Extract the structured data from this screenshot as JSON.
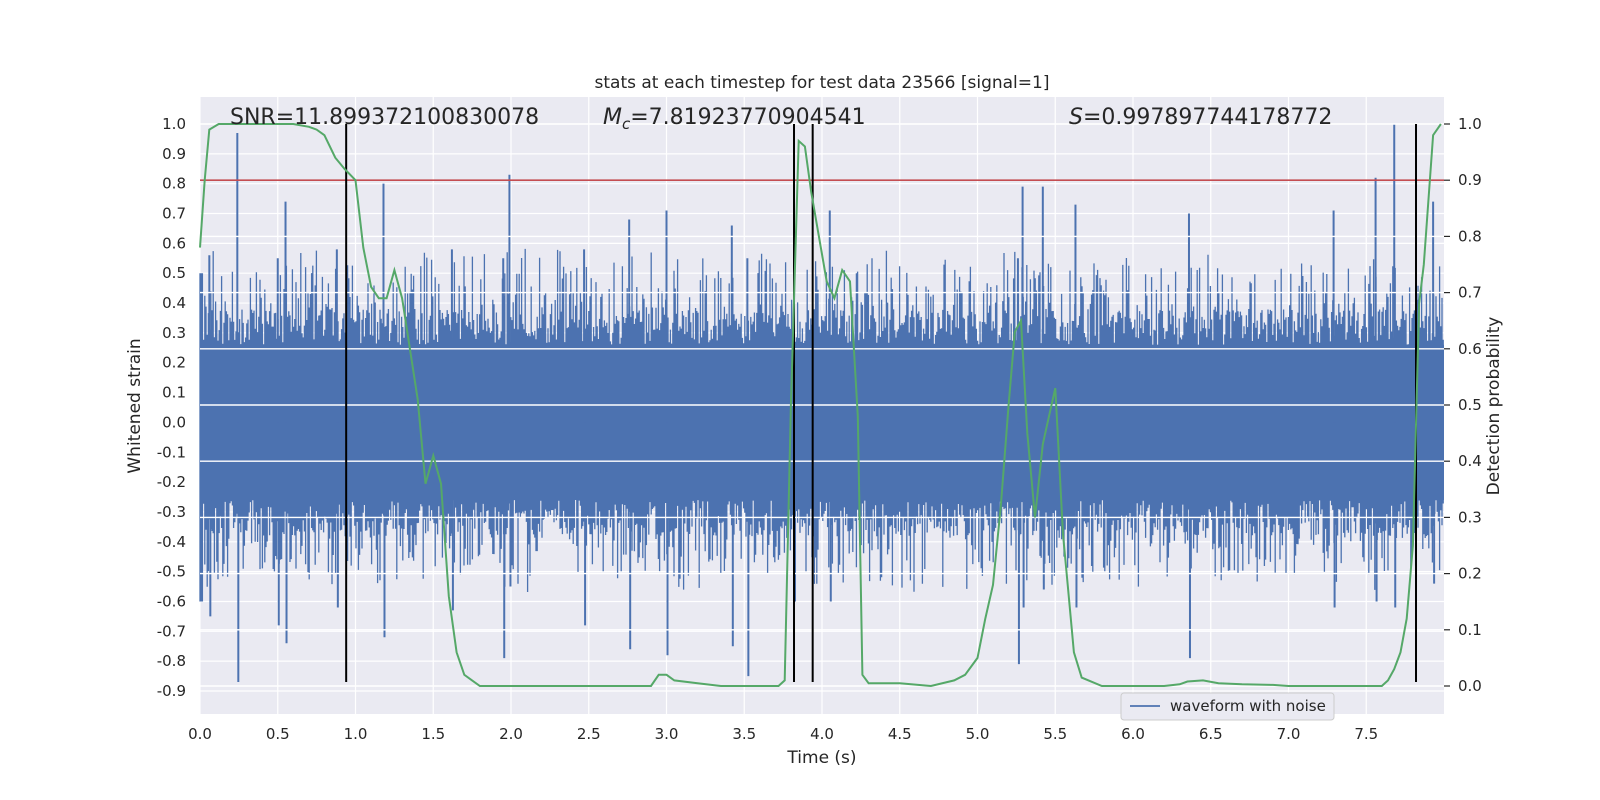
{
  "chart_data": {
    "type": "line",
    "title": "stats at each timestep for test data 23566 [signal=1]",
    "xlabel": "Time (s)",
    "ylabel": "Whitened strain",
    "y2label": "Detection probability",
    "xlim": [
      0.0,
      8.0
    ],
    "ylim": [
      -0.97,
      1.0
    ],
    "y2lim": [
      -0.05,
      1.0
    ],
    "x_ticks": [
      "0.0",
      "0.5",
      "1.0",
      "1.5",
      "2.0",
      "2.5",
      "3.0",
      "3.5",
      "4.0",
      "4.5",
      "5.0",
      "5.5",
      "6.0",
      "6.5",
      "7.0",
      "7.5"
    ],
    "y_ticks": [
      "1.0",
      "0.9",
      "0.8",
      "0.7",
      "0.6",
      "0.5",
      "0.4",
      "0.3",
      "0.2",
      "0.1",
      "0.0",
      "-0.1",
      "-0.2",
      "-0.3",
      "-0.4",
      "-0.5",
      "-0.6",
      "-0.7",
      "-0.8",
      "-0.9"
    ],
    "y2_ticks": [
      "1.0",
      "0.9",
      "0.8",
      "0.7",
      "0.6",
      "0.5",
      "0.4",
      "0.3",
      "0.2",
      "0.1",
      "0.0"
    ],
    "grid": true,
    "legend_position": "lower-right",
    "annotations": {
      "snr": "SNR=11.899372100830078",
      "mc_symbol": "M",
      "mc_sub": "c",
      "mc_value": "=7.81923770904541",
      "s_symbol": "S",
      "s_value": "=0.997897744178772"
    },
    "series": [
      {
        "name": "waveform with noise",
        "color": "#4c72b0",
        "axis": "left",
        "spikes": [
          {
            "x": 0.24,
            "top": 0.97,
            "bottom": -0.87
          },
          {
            "x": 0.06,
            "top": 0.56,
            "bottom": -0.65
          },
          {
            "x": 0.5,
            "top": 0.55,
            "bottom": -0.68
          },
          {
            "x": 0.55,
            "top": 0.74,
            "bottom": -0.74
          },
          {
            "x": 0.88,
            "top": 0.58,
            "bottom": -0.62
          },
          {
            "x": 1.18,
            "top": 0.8,
            "bottom": -0.72
          },
          {
            "x": 1.62,
            "top": 0.58,
            "bottom": -0.63
          },
          {
            "x": 1.95,
            "top": 0.55,
            "bottom": -0.79
          },
          {
            "x": 1.99,
            "top": 0.83,
            "bottom": -0.55
          },
          {
            "x": 2.47,
            "top": 0.58,
            "bottom": -0.68
          },
          {
            "x": 2.76,
            "top": 0.68,
            "bottom": -0.76
          },
          {
            "x": 3.0,
            "top": 0.71,
            "bottom": -0.78
          },
          {
            "x": 3.42,
            "top": 0.66,
            "bottom": -0.75
          },
          {
            "x": 3.52,
            "top": 0.55,
            "bottom": -0.85
          },
          {
            "x": 3.82,
            "top": 0.75,
            "bottom": -0.6
          },
          {
            "x": 4.05,
            "top": 0.71,
            "bottom": -0.6
          },
          {
            "x": 5.29,
            "top": 0.79,
            "bottom": -0.62
          },
          {
            "x": 5.26,
            "top": 0.55,
            "bottom": -0.81
          },
          {
            "x": 5.42,
            "top": 0.79,
            "bottom": -0.56
          },
          {
            "x": 5.63,
            "top": 0.73,
            "bottom": -0.62
          },
          {
            "x": 6.36,
            "top": 0.7,
            "bottom": -0.79
          },
          {
            "x": 7.29,
            "top": 0.71,
            "bottom": -0.62
          },
          {
            "x": 7.56,
            "top": 0.82,
            "bottom": -0.6
          },
          {
            "x": 7.68,
            "top": 1.0,
            "bottom": -0.62
          },
          {
            "x": 7.93,
            "top": 0.74,
            "bottom": -0.54
          }
        ]
      },
      {
        "name": "",
        "color": "#55a868",
        "axis": "right",
        "x": [
          0.0,
          0.03,
          0.06,
          0.12,
          0.2,
          0.3,
          0.4,
          0.5,
          0.6,
          0.7,
          0.75,
          0.8,
          0.87,
          0.93,
          1.0,
          1.05,
          1.1,
          1.15,
          1.2,
          1.25,
          1.3,
          1.35,
          1.4,
          1.45,
          1.5,
          1.55,
          1.6,
          1.65,
          1.7,
          1.75,
          1.8,
          1.9,
          2.0,
          2.1,
          2.2,
          2.3,
          2.5,
          2.7,
          2.8,
          2.9,
          2.95,
          3.0,
          3.05,
          3.2,
          3.35,
          3.45,
          3.55,
          3.65,
          3.72,
          3.76,
          3.8,
          3.85,
          3.89,
          3.93,
          3.98,
          4.03,
          4.08,
          4.13,
          4.18,
          4.23,
          4.26,
          4.3,
          4.5,
          4.7,
          4.85,
          4.92,
          5.0,
          5.05,
          5.1,
          5.15,
          5.2,
          5.24,
          5.28,
          5.32,
          5.37,
          5.42,
          5.46,
          5.5,
          5.55,
          5.58,
          5.62,
          5.67,
          5.8,
          6.0,
          6.2,
          6.3,
          6.35,
          6.45,
          6.55,
          6.7,
          6.9,
          7.0,
          7.2,
          7.4,
          7.5,
          7.6,
          7.64,
          7.68,
          7.72,
          7.76,
          7.8,
          7.84,
          7.87,
          7.93,
          7.98
        ],
        "values": [
          0.78,
          0.9,
          0.99,
          1.0,
          1.0,
          1.0,
          1.0,
          1.0,
          1.0,
          0.995,
          0.99,
          0.98,
          0.94,
          0.92,
          0.9,
          0.78,
          0.71,
          0.69,
          0.69,
          0.74,
          0.69,
          0.6,
          0.51,
          0.36,
          0.41,
          0.36,
          0.16,
          0.06,
          0.02,
          0.01,
          0.0,
          0.0,
          0.0,
          0.0,
          0.0,
          0.0,
          0.0,
          0.0,
          0.0,
          0.0,
          0.02,
          0.02,
          0.01,
          0.005,
          0.0,
          0.0,
          0.0,
          0.0,
          0.0,
          0.01,
          0.5,
          0.97,
          0.96,
          0.88,
          0.8,
          0.72,
          0.69,
          0.74,
          0.72,
          0.48,
          0.02,
          0.005,
          0.005,
          0.0,
          0.01,
          0.02,
          0.05,
          0.12,
          0.18,
          0.32,
          0.5,
          0.63,
          0.65,
          0.45,
          0.3,
          0.43,
          0.48,
          0.53,
          0.27,
          0.18,
          0.06,
          0.015,
          0.0,
          0.0,
          0.0,
          0.003,
          0.008,
          0.01,
          0.005,
          0.003,
          0.002,
          0.0,
          0.0,
          0.0,
          0.0,
          0.0,
          0.01,
          0.03,
          0.06,
          0.12,
          0.25,
          0.68,
          0.75,
          0.98,
          1.0
        ]
      },
      {
        "name": "",
        "color": "#c44e52",
        "axis": "right",
        "type": "hline",
        "value": 0.9
      },
      {
        "name": "",
        "color": "#000000",
        "axis": "left",
        "type": "vlines",
        "x": [
          0.94,
          3.82,
          3.94,
          7.82
        ],
        "ymin": -0.87,
        "ymax": 1.0
      }
    ]
  }
}
